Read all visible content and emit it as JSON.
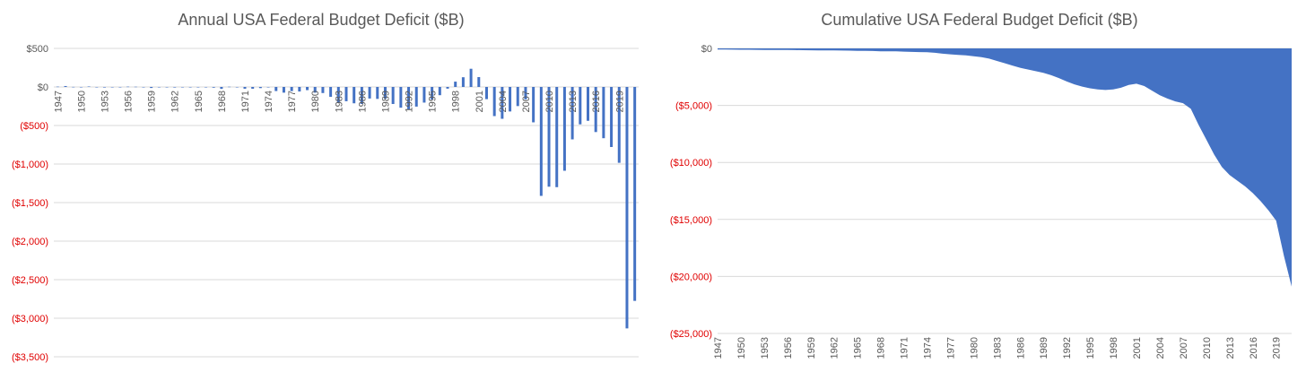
{
  "colors": {
    "series": "#4472C4",
    "negative_label": "#E00000",
    "positive_label": "#595959",
    "grid": "#D9D9D9"
  },
  "chart_data": [
    {
      "type": "bar",
      "title": "Annual USA Federal Budget Deficit ($B)",
      "xlabel": "",
      "ylabel": "",
      "ylim": [
        -3500,
        500
      ],
      "yticks": [
        500,
        0,
        -500,
        -1000,
        -1500,
        -2000,
        -2500,
        -3000,
        -3500
      ],
      "ytick_labels": [
        "$500",
        "$0",
        "($500)",
        "($1,000)",
        "($1,500)",
        "($2,000)",
        "($2,500)",
        "($3,000)",
        "($3,500)"
      ],
      "xtick_labels": [
        "1947",
        "1950",
        "1953",
        "1956",
        "1959",
        "1962",
        "1965",
        "1968",
        "1971",
        "1974",
        "1977",
        "1980",
        "1983",
        "1986",
        "1989",
        "1992",
        "1995",
        "1998",
        "2001",
        "2004",
        "2007",
        "2010",
        "2013",
        "2016",
        "2019"
      ],
      "grid": true,
      "categories": [
        1947,
        1948,
        1949,
        1950,
        1951,
        1952,
        1953,
        1954,
        1955,
        1956,
        1957,
        1958,
        1959,
        1960,
        1961,
        1962,
        1963,
        1964,
        1965,
        1966,
        1967,
        1968,
        1969,
        1970,
        1971,
        1972,
        1973,
        1974,
        1975,
        1976,
        1977,
        1978,
        1979,
        1980,
        1981,
        1982,
        1983,
        1984,
        1985,
        1986,
        1987,
        1988,
        1989,
        1990,
        1991,
        1992,
        1993,
        1994,
        1995,
        1996,
        1997,
        1998,
        1999,
        2000,
        2001,
        2002,
        2003,
        2004,
        2005,
        2006,
        2007,
        2008,
        2009,
        2010,
        2011,
        2012,
        2013,
        2014,
        2015,
        2016,
        2017,
        2018,
        2019,
        2020,
        2021
      ],
      "values": [
        4,
        12,
        1,
        -3,
        6,
        -2,
        -7,
        -1,
        -3,
        4,
        3,
        -3,
        -13,
        0,
        -3,
        -7,
        -5,
        -6,
        -1,
        -4,
        -9,
        -25,
        3,
        -3,
        -23,
        -23,
        -15,
        -6,
        -53,
        -74,
        -54,
        -59,
        -41,
        -74,
        -79,
        -128,
        -208,
        -185,
        -212,
        -221,
        -150,
        -155,
        -153,
        -221,
        -269,
        -290,
        -255,
        -203,
        -164,
        -107,
        -22,
        69,
        126,
        236,
        128,
        -158,
        -378,
        -413,
        -318,
        -248,
        -161,
        -459,
        -1413,
        -1294,
        -1300,
        -1087,
        -680,
        -485,
        -439,
        -585,
        -665,
        -779,
        -984,
        -3132,
        -2775
      ]
    },
    {
      "type": "area",
      "title": "Cumulative USA Federal Budget Deficit ($B)",
      "xlabel": "",
      "ylabel": "",
      "ylim": [
        -25000,
        0
      ],
      "yticks": [
        0,
        -5000,
        -10000,
        -15000,
        -20000,
        -25000
      ],
      "ytick_labels": [
        "$0",
        "($5,000)",
        "($10,000)",
        "($15,000)",
        "($20,000)",
        "($25,000)"
      ],
      "xtick_labels": [
        "1947",
        "1950",
        "1953",
        "1956",
        "1959",
        "1962",
        "1965",
        "1968",
        "1971",
        "1974",
        "1977",
        "1980",
        "1983",
        "1986",
        "1989",
        "1992",
        "1995",
        "1998",
        "2001",
        "2004",
        "2007",
        "2010",
        "2013",
        "2016",
        "2019"
      ],
      "grid": true,
      "x": [
        1947,
        1948,
        1949,
        1950,
        1951,
        1952,
        1953,
        1954,
        1955,
        1956,
        1957,
        1958,
        1959,
        1960,
        1961,
        1962,
        1963,
        1964,
        1965,
        1966,
        1967,
        1968,
        1969,
        1970,
        1971,
        1972,
        1973,
        1974,
        1975,
        1976,
        1977,
        1978,
        1979,
        1980,
        1981,
        1982,
        1983,
        1984,
        1985,
        1986,
        1987,
        1988,
        1989,
        1990,
        1991,
        1992,
        1993,
        1994,
        1995,
        1996,
        1997,
        1998,
        1999,
        2000,
        2001,
        2002,
        2003,
        2004,
        2005,
        2006,
        2007,
        2008,
        2009,
        2010,
        2011,
        2012,
        2013,
        2014,
        2015,
        2016,
        2017,
        2018,
        2019,
        2020,
        2021
      ],
      "values": [
        -100,
        -105,
        -110,
        -115,
        -120,
        -125,
        -130,
        -135,
        -140,
        -145,
        -150,
        -155,
        -165,
        -170,
        -175,
        -180,
        -190,
        -200,
        -210,
        -215,
        -225,
        -250,
        -255,
        -260,
        -285,
        -310,
        -325,
        -330,
        -385,
        -460,
        -515,
        -575,
        -615,
        -690,
        -770,
        -900,
        -1100,
        -1300,
        -1500,
        -1700,
        -1850,
        -2000,
        -2150,
        -2350,
        -2600,
        -2900,
        -3150,
        -3350,
        -3500,
        -3600,
        -3650,
        -3600,
        -3450,
        -3200,
        -3100,
        -3300,
        -3700,
        -4100,
        -4400,
        -4650,
        -4800,
        -5300,
        -6700,
        -8000,
        -9300,
        -10400,
        -11100,
        -11600,
        -12100,
        -12700,
        -13400,
        -14200,
        -15100,
        -18200,
        -20900
      ]
    }
  ]
}
